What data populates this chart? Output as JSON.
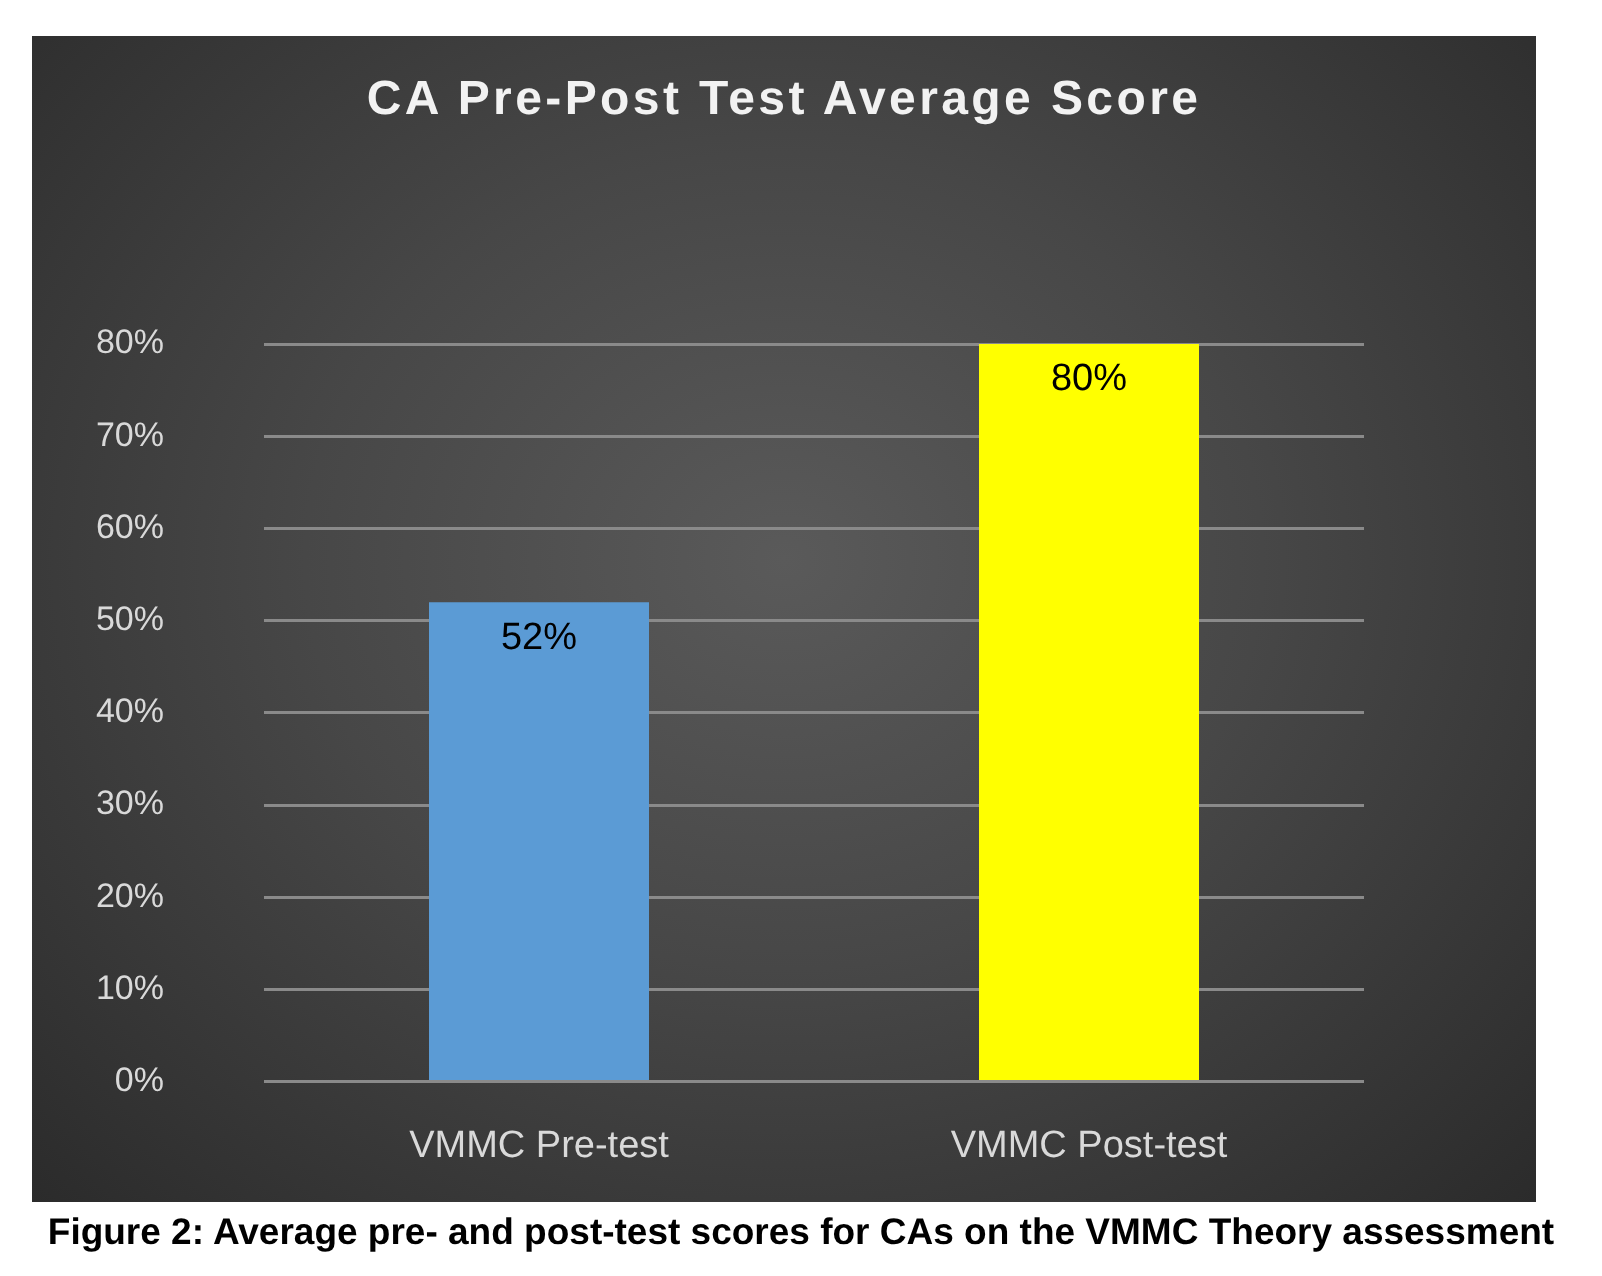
{
  "chart_data": {
    "type": "bar",
    "title": "CA Pre-Post Test Average Score",
    "categories": [
      "VMMC Pre-test",
      "VMMC Post-test"
    ],
    "values": [
      52,
      80
    ],
    "colors": [
      "#5b9bd5",
      "#ffff00"
    ],
    "value_labels": [
      "52%",
      "80%"
    ],
    "ylim": [
      0,
      80
    ],
    "yticks": [
      {
        "value": 0,
        "label": "0%"
      },
      {
        "value": 10,
        "label": "10%"
      },
      {
        "value": 20,
        "label": "20%"
      },
      {
        "value": 30,
        "label": "30%"
      },
      {
        "value": 40,
        "label": "40%"
      },
      {
        "value": 50,
        "label": "50%"
      },
      {
        "value": 60,
        "label": "60%"
      },
      {
        "value": 70,
        "label": "70%"
      },
      {
        "value": 80,
        "label": "80%"
      }
    ],
    "grid": "y",
    "legend": false,
    "annotations": [
      "Figure 2: Average pre- and post-test scores for CAs on the VMMC Theory assessment"
    ]
  }
}
